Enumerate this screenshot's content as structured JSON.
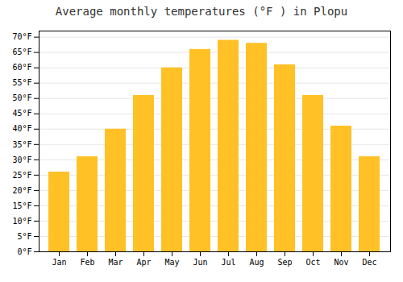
{
  "chart_data": {
    "type": "bar",
    "title": "Average monthly temperatures (°F ) in Plopu",
    "categories": [
      "Jan",
      "Feb",
      "Mar",
      "Apr",
      "May",
      "Jun",
      "Jul",
      "Aug",
      "Sep",
      "Oct",
      "Nov",
      "Dec"
    ],
    "values": [
      26,
      31,
      40,
      51,
      60,
      66,
      69,
      68,
      61,
      51,
      41,
      31
    ],
    "color": "#FFC125",
    "ylim": [
      0,
      72
    ],
    "yticks": [
      {
        "value": 0,
        "label": "0°F"
      },
      {
        "value": 5,
        "label": "5°F"
      },
      {
        "value": 10,
        "label": "10°F"
      },
      {
        "value": 15,
        "label": "15°F"
      },
      {
        "value": 20,
        "label": "20°F"
      },
      {
        "value": 25,
        "label": "25°F"
      },
      {
        "value": 30,
        "label": "30°F"
      },
      {
        "value": 35,
        "label": "35°F"
      },
      {
        "value": 40,
        "label": "40°F"
      },
      {
        "value": 45,
        "label": "45°F"
      },
      {
        "value": 50,
        "label": "50°F"
      },
      {
        "value": 55,
        "label": "55°F"
      },
      {
        "value": 60,
        "label": "60°F"
      },
      {
        "value": 65,
        "label": "65°F"
      },
      {
        "value": 70,
        "label": "70°F"
      }
    ],
    "grid": true
  }
}
